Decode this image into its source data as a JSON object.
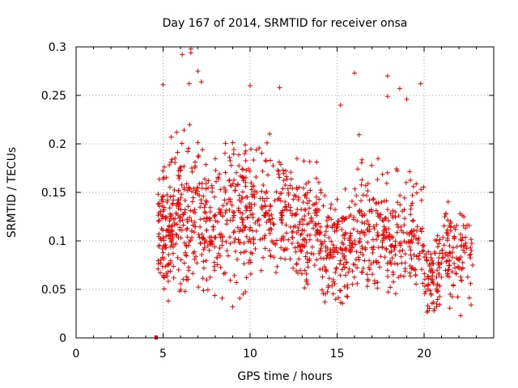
{
  "chart_data": {
    "type": "scatter",
    "title": "Day 167 of 2014, SRMTID for receiver onsa",
    "xlabel": "GPS time / hours",
    "ylabel": "SRMTID / TECUs",
    "xlim": [
      0,
      24
    ],
    "ylim": [
      0,
      0.3
    ],
    "xticks": [
      0,
      5,
      10,
      15,
      20
    ],
    "yticks": [
      0,
      0.05,
      0.1,
      0.15,
      0.2,
      0.25,
      0.3
    ],
    "xtick_labels": [
      "0",
      "5",
      "10",
      "15",
      "20"
    ],
    "ytick_labels": [
      "0",
      "0.05",
      "0.1",
      "0.15",
      "0.2",
      "0.25",
      "0.3"
    ],
    "grid": true,
    "marker": "plus",
    "color": "#ee0000",
    "outlier_points": [
      {
        "x": 4.6,
        "y": 0.0
      },
      {
        "x": 6.1,
        "y": 0.292
      },
      {
        "x": 6.6,
        "y": 0.298
      },
      {
        "x": 6.6,
        "y": 0.294
      },
      {
        "x": 6.5,
        "y": 0.262
      },
      {
        "x": 7.0,
        "y": 0.275
      },
      {
        "x": 7.2,
        "y": 0.264
      },
      {
        "x": 5.0,
        "y": 0.261
      },
      {
        "x": 10.0,
        "y": 0.26
      },
      {
        "x": 11.7,
        "y": 0.258
      },
      {
        "x": 16.0,
        "y": 0.273
      },
      {
        "x": 17.9,
        "y": 0.27
      },
      {
        "x": 18.6,
        "y": 0.257
      },
      {
        "x": 19.8,
        "y": 0.262
      },
      {
        "x": 17.9,
        "y": 0.249
      },
      {
        "x": 19.0,
        "y": 0.246
      },
      {
        "x": 15.2,
        "y": 0.24
      },
      {
        "x": 22.1,
        "y": 0.023
      },
      {
        "x": 20.6,
        "y": 0.03
      },
      {
        "x": 9.0,
        "y": 0.032
      },
      {
        "x": 5.3,
        "y": 0.038
      },
      {
        "x": 14.3,
        "y": 0.037
      },
      {
        "x": 22.7,
        "y": 0.034
      },
      {
        "x": 21.5,
        "y": 0.045
      }
    ],
    "clusters": [
      {
        "x_range": [
          4.7,
          5.6
        ],
        "y_center": 0.11,
        "y_spread": 0.04,
        "y_min": 0.05,
        "y_max": 0.22,
        "count": 120
      },
      {
        "x_range": [
          5.6,
          7.5
        ],
        "y_center": 0.13,
        "y_spread": 0.05,
        "y_min": 0.045,
        "y_max": 0.26,
        "count": 180
      },
      {
        "x_range": [
          7.5,
          9.5
        ],
        "y_center": 0.12,
        "y_spread": 0.045,
        "y_min": 0.03,
        "y_max": 0.23,
        "count": 150
      },
      {
        "x_range": [
          9.5,
          12.0
        ],
        "y_center": 0.13,
        "y_spread": 0.045,
        "y_min": 0.04,
        "y_max": 0.245,
        "count": 190
      },
      {
        "x_range": [
          12.0,
          14.0
        ],
        "y_center": 0.11,
        "y_spread": 0.04,
        "y_min": 0.045,
        "y_max": 0.22,
        "count": 160
      },
      {
        "x_range": [
          14.0,
          16.0
        ],
        "y_center": 0.09,
        "y_spread": 0.035,
        "y_min": 0.035,
        "y_max": 0.22,
        "count": 160
      },
      {
        "x_range": [
          16.0,
          18.0
        ],
        "y_center": 0.11,
        "y_spread": 0.04,
        "y_min": 0.04,
        "y_max": 0.22,
        "count": 150
      },
      {
        "x_range": [
          18.0,
          20.0
        ],
        "y_center": 0.105,
        "y_spread": 0.035,
        "y_min": 0.045,
        "y_max": 0.21,
        "count": 130
      },
      {
        "x_range": [
          20.0,
          21.0
        ],
        "y_center": 0.065,
        "y_spread": 0.025,
        "y_min": 0.025,
        "y_max": 0.14,
        "count": 80
      },
      {
        "x_range": [
          21.0,
          22.8
        ],
        "y_center": 0.09,
        "y_spread": 0.03,
        "y_min": 0.03,
        "y_max": 0.155,
        "count": 110
      }
    ]
  }
}
